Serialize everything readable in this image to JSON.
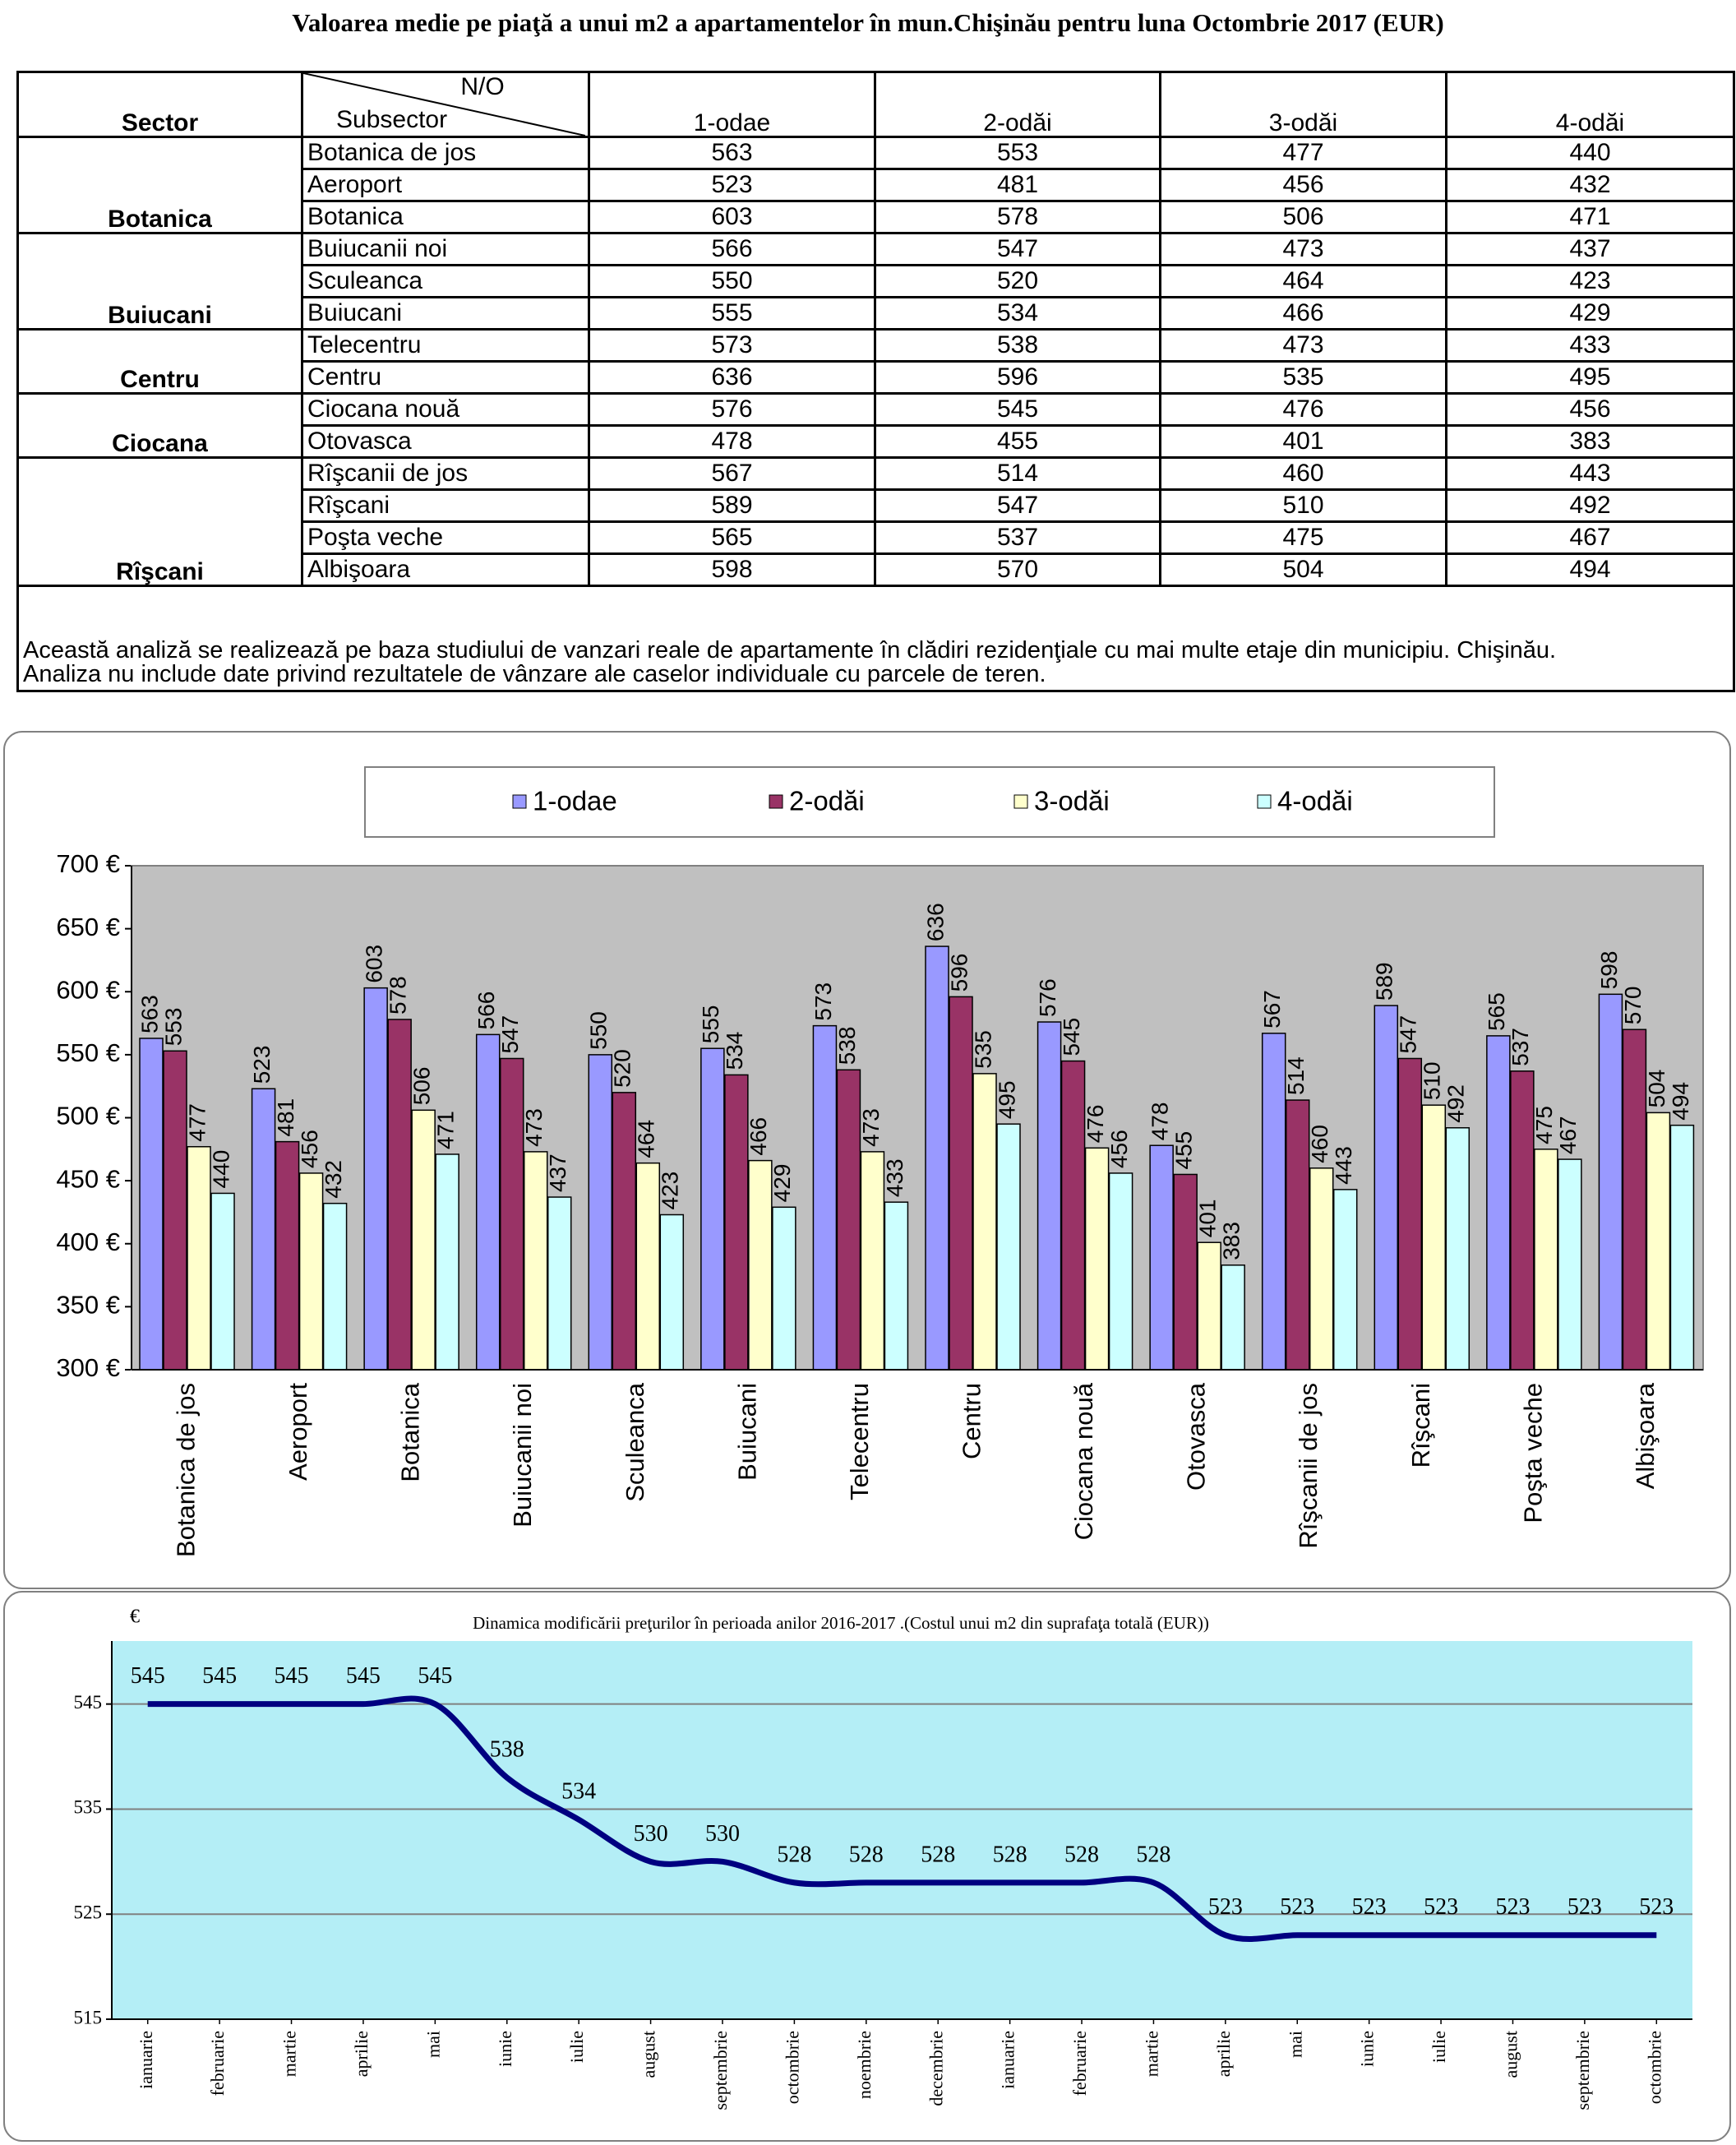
{
  "title": "Valoarea medie pe piaţă a unui m2 a apartamentelor în mun.Chişinău pentru luna Octombrie 2017 (EUR)",
  "table": {
    "header": {
      "sector": "Sector",
      "corner": "N/O",
      "subsector": "Subsector",
      "columns": [
        "1-odae",
        "2-odăi",
        "3-odăi",
        "4-odăi"
      ]
    },
    "sectors": [
      {
        "name": "Botanica",
        "rows": [
          {
            "subsector": "Botanica de jos",
            "values": [
              563,
              553,
              477,
              440
            ]
          },
          {
            "subsector": "Aeroport",
            "values": [
              523,
              481,
              456,
              432
            ]
          },
          {
            "subsector": "Botanica",
            "values": [
              603,
              578,
              506,
              471
            ]
          }
        ]
      },
      {
        "name": "Buiucani",
        "rows": [
          {
            "subsector": "Buiucanii noi",
            "values": [
              566,
              547,
              473,
              437
            ]
          },
          {
            "subsector": "Sculeanca",
            "values": [
              550,
              520,
              464,
              423
            ]
          },
          {
            "subsector": "Buiucani",
            "values": [
              555,
              534,
              466,
              429
            ]
          }
        ]
      },
      {
        "name": "Centru",
        "rows": [
          {
            "subsector": "Telecentru",
            "values": [
              573,
              538,
              473,
              433
            ]
          },
          {
            "subsector": "Centru",
            "values": [
              636,
              596,
              535,
              495
            ]
          }
        ]
      },
      {
        "name": "Ciocana",
        "rows": [
          {
            "subsector": "Ciocana nouă",
            "values": [
              576,
              545,
              476,
              456
            ]
          },
          {
            "subsector": "Otovasca",
            "values": [
              478,
              455,
              401,
              383
            ]
          }
        ]
      },
      {
        "name": "Rîşcani",
        "rows": [
          {
            "subsector": "Rîşcanii de jos",
            "values": [
              567,
              514,
              460,
              443
            ]
          },
          {
            "subsector": "Rîşcani",
            "values": [
              589,
              547,
              510,
              492
            ]
          },
          {
            "subsector": "Poşta veche",
            "values": [
              565,
              537,
              475,
              467
            ]
          },
          {
            "subsector": "Albişoara",
            "values": [
              598,
              570,
              504,
              494
            ]
          }
        ]
      }
    ],
    "note": [
      "Această analiză se realizează pe baza studiului de vanzari reale de apartamente în clădiri rezidenţiale cu mai multe etaje din municipiu. Chişinău.",
      "Analiza nu include date privind rezultatele de vânzare ale caselor individuale cu parcele de teren."
    ]
  },
  "chart_data": [
    {
      "type": "bar",
      "legend": "top",
      "grid": false,
      "plot_background": "#c0c0c0",
      "categories": [
        "Botanica de jos",
        "Aeroport",
        "Botanica",
        "Buiucanii noi",
        "Sculeanca",
        "Buiucani",
        "Telecentru",
        "Centru",
        "Ciocana nouă",
        "Otovasca",
        "Rîşcanii de jos",
        "Rîşcani",
        "Poşta veche",
        "Albişoara"
      ],
      "series": [
        {
          "name": "1-odae",
          "color": "#9999ff",
          "values": [
            563,
            523,
            603,
            566,
            550,
            555,
            573,
            636,
            576,
            478,
            567,
            589,
            565,
            598
          ]
        },
        {
          "name": "2-odăi",
          "color": "#993366",
          "values": [
            553,
            481,
            578,
            547,
            520,
            534,
            538,
            596,
            545,
            455,
            514,
            547,
            537,
            570
          ]
        },
        {
          "name": "3-odăi",
          "color": "#ffffcc",
          "values": [
            477,
            456,
            506,
            473,
            464,
            466,
            473,
            535,
            476,
            401,
            460,
            510,
            475,
            504
          ]
        },
        {
          "name": "4-odăi",
          "color": "#ccffff",
          "values": [
            440,
            432,
            471,
            437,
            423,
            429,
            433,
            495,
            456,
            383,
            443,
            492,
            467,
            494
          ]
        }
      ],
      "ylim": [
        300,
        700
      ],
      "yticks": [
        {
          "value": 300,
          "label": "300 €"
        },
        {
          "value": 350,
          "label": "350 €"
        },
        {
          "value": 400,
          "label": "400 €"
        },
        {
          "value": 450,
          "label": "450 €"
        },
        {
          "value": 500,
          "label": "500 €"
        },
        {
          "value": 550,
          "label": "550 €"
        },
        {
          "value": 600,
          "label": "600 €"
        },
        {
          "value": 650,
          "label": "650 €"
        },
        {
          "value": 700,
          "label": "700 €"
        }
      ]
    },
    {
      "type": "line",
      "title": "Dinamica modificării preţurilor în perioada anilor 2016-2017 .(Costul unui m2 din suprafaţa totală (EUR))",
      "y_label": "€",
      "color": "#000080",
      "grid": true,
      "smooth": true,
      "plot_background": "#b4eef6",
      "categories": [
        "ianuarie",
        "februarie",
        "martie",
        "aprilie",
        "mai",
        "iunie",
        "iulie",
        "august",
        "septembrie",
        "octombrie",
        "noembrie",
        "decembrie",
        "ianuarie",
        "februarie",
        "martie",
        "aprilie",
        "mai",
        "iunie",
        "iulie",
        "august",
        "septembrie",
        "octombrie"
      ],
      "values": [
        545,
        545,
        545,
        545,
        545,
        538,
        534,
        530,
        530,
        528,
        528,
        528,
        528,
        528,
        528,
        523,
        523,
        523,
        523,
        523,
        523,
        523
      ],
      "ylim": [
        515,
        551
      ],
      "yticks": [
        515,
        525,
        535,
        545
      ]
    }
  ]
}
